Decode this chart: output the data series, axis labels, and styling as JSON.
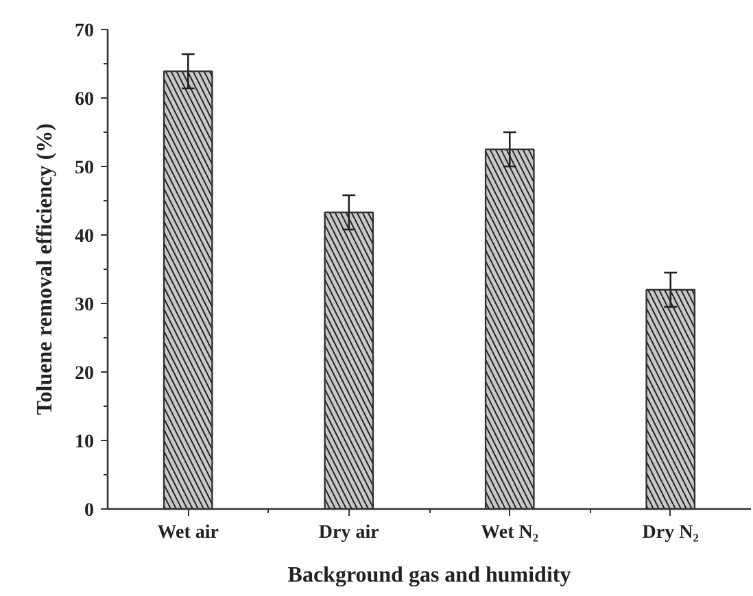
{
  "chart_data": {
    "type": "bar",
    "xlabel": "Background gas and humidity",
    "ylabel": "Toluene removal efficiency (%)",
    "categories": [
      "Wet air",
      "Dry air",
      "Wet N₂",
      "Dry N₂"
    ],
    "values": [
      63.9,
      43.3,
      52.5,
      32.0
    ],
    "errors": [
      2.5,
      2.5,
      2.5,
      2.5
    ],
    "color": "#c8c8c8",
    "ylim": [
      0,
      70
    ],
    "yticks": [
      0,
      10,
      20,
      30,
      40,
      50,
      60,
      70
    ],
    "grid": false
  }
}
